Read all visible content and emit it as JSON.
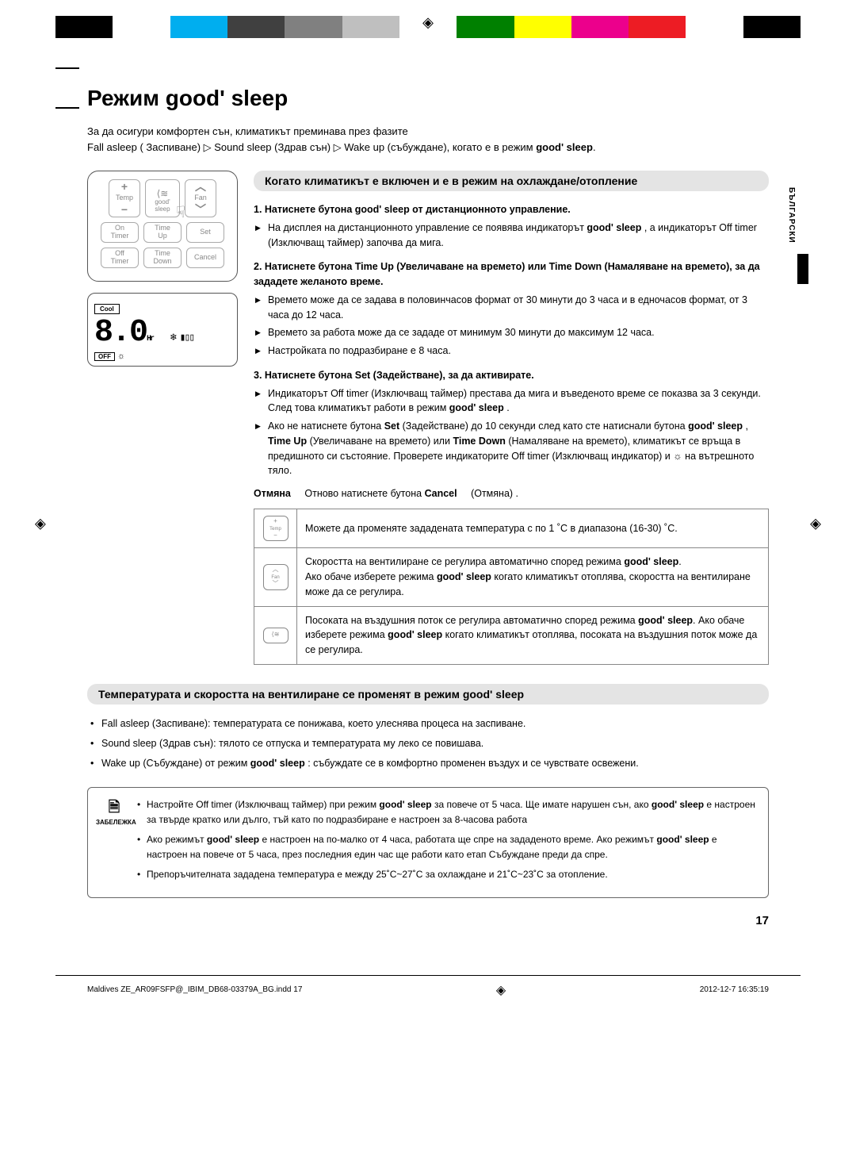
{
  "printer_colors": [
    "#000000",
    "#ffffff",
    "#00aeef",
    "#404040",
    "#808080",
    "#bfbfbf",
    "#ffffff",
    "#008000",
    "#ffff00",
    "#ec008c",
    "#ed1c24",
    "#ffffff",
    "#000000"
  ],
  "title": "Режим good' sleep",
  "intro_line1": "За да осигури комфортен сън, климатикът преминава през фазите",
  "intro_line2_a": "Fall asleep ( Заспиване) ▷ Sound sleep (Здрав сън) ▷ Wake up (събуждане), когато е в режим ",
  "intro_line2_b": "good' sleep",
  "remote": {
    "temp": "Temp",
    "good_sleep": "good'\nsleep",
    "fan": "Fan",
    "on_timer": "On\nTimer",
    "time_up": "Time\nUp",
    "set": "Set",
    "off_timer": "Off\nTimer",
    "time_down": "Time\nDown",
    "cancel": "Cancel"
  },
  "lcd": {
    "cool": "Cool",
    "num": "8.0",
    "hr": "Hr",
    "off": "OFF"
  },
  "subhead1": "Когато климатикът е включен и е в режим на охлаждане/отопление",
  "step1": {
    "title": "1.  Натиснете бутона  good' sleep от дистанционното управление.",
    "b1a": "На дисплея на дистанционното управление се появява индикаторът ",
    "b1b": "good' sleep",
    "b1c": " , а индикаторът Off timer (Изключващ таймер) започва да мига."
  },
  "step2": {
    "title": "2.  Натиснете бутона Time Up (Увеличаване на времето) или Time Down (Намаляване на времето), за да зададете желаното време.",
    "b1": "Времето може да се задава в половинчасов формат от 30 минути до 3 часа и в едночасов формат, от 3 часа до 12 часа.",
    "b2": "Времето за работа може да се зададе от минимум 30 минути до максимум 12 часа.",
    "b3": "Настройката по подразбиране е 8 часа."
  },
  "step3": {
    "title": "3.  Натиснете бутона Set (Задействане), за да активирате.",
    "b1a": "Индикаторът Off timer (Изключващ таймер) престава да мига и въведеното време се показва за 3 секунди. След това климатикът работи в режим ",
    "b1b": "good' sleep",
    "b2a": "Ако не натиснете бутона ",
    "b2b": "Set",
    "b2c": " (Задействане) до 10 секунди след като сте натиснали бутонa ",
    "b2d": "good' sleep",
    "b2e": " , ",
    "b2f": "Time Up",
    "b2g": " (Увеличаване на времето) или ",
    "b2h": "Time Down",
    "b2i": " (Намаляване на времето), климатикът се връща в предишното си състояние. Проверете индикаторите Off timer (Изключващ индикатор) и ☼ на вътрешното тяло."
  },
  "cancel": {
    "label": "Отмяна",
    "text_a": "Отново натиснете бутона ",
    "text_b": "Cancel",
    "text_c": " (Отмяна) ."
  },
  "table": {
    "r1": "Можете да променяте зададената температура с по 1 ˚C в диапазона (16-30) ˚C.",
    "r2a": "Скоростта на вентилиране се регулира автоматично според режима ",
    "r2b": "good' sleep",
    "r2c": "Ако обаче изберете режима ",
    "r2d": "good' sleep",
    "r2e": " когато климатикът отоплява, скоростта на вентилиране може да се регулира.",
    "r3a": "Посоката на въздушния поток се регулира автоматично според режима ",
    "r3b": "good' sleep",
    "r3c": ". Ако обаче изберете режима ",
    "r3d": "good' sleep",
    "r3e": " когато климатикът отоплява, посоката на въздушния поток може да се регулира."
  },
  "subhead2": "Температурата и скоростта на вентилиране се променят в режим  good' sleep",
  "phases": {
    "p1": "Fall asleep (Заспиване): температурата се понижава, което улеснява процеса на заспиване.",
    "p2": "Sound sleep (Здрав сън): тялото се отпуска и температурата му леко се повишава.",
    "p3a": "Wake up (Събуждане) от режим ",
    "p3b": "good' sleep",
    "p3c": " : събуждате се в комфортно променен въздух и се чувствате освежени."
  },
  "note_label": "ЗАБЕЛЕЖКА",
  "notes": {
    "n1a": "Настройте Off timer (Изключващ таймер) при режим ",
    "n1b": "good' sleep",
    "n1c": " за повече от 5 часа. Ще имате нарушен сън, ако  ",
    "n1d": "good' sleep",
    "n1e": " е настроен за твърде кратко или дълго, тъй като по подразбиране е настроен за 8-часова работа",
    "n2a": "Ако режимът ",
    "n2b": "good' sleep",
    "n2c": " е настроен на по-малко от 4 часа, работата ще спре на зададеното време. Ако режимът ",
    "n2d": "good' sleep",
    "n2e": " е настроен на повече от 5 часа, през последния един час ще работи като етап Събуждане преди да спре.",
    "n3": "Препоръчителната зададена температура е между 25˚C~27˚C за охлаждане и 21˚C~23˚C за отопление."
  },
  "side_tab": "БЪЛГАРСКИ",
  "page_num": "17",
  "footer_left": "Maldives ZE_AR09FSFP@_IBIM_DB68-03379A_BG.indd   17",
  "footer_right": "2012-12-7   16:35:19"
}
